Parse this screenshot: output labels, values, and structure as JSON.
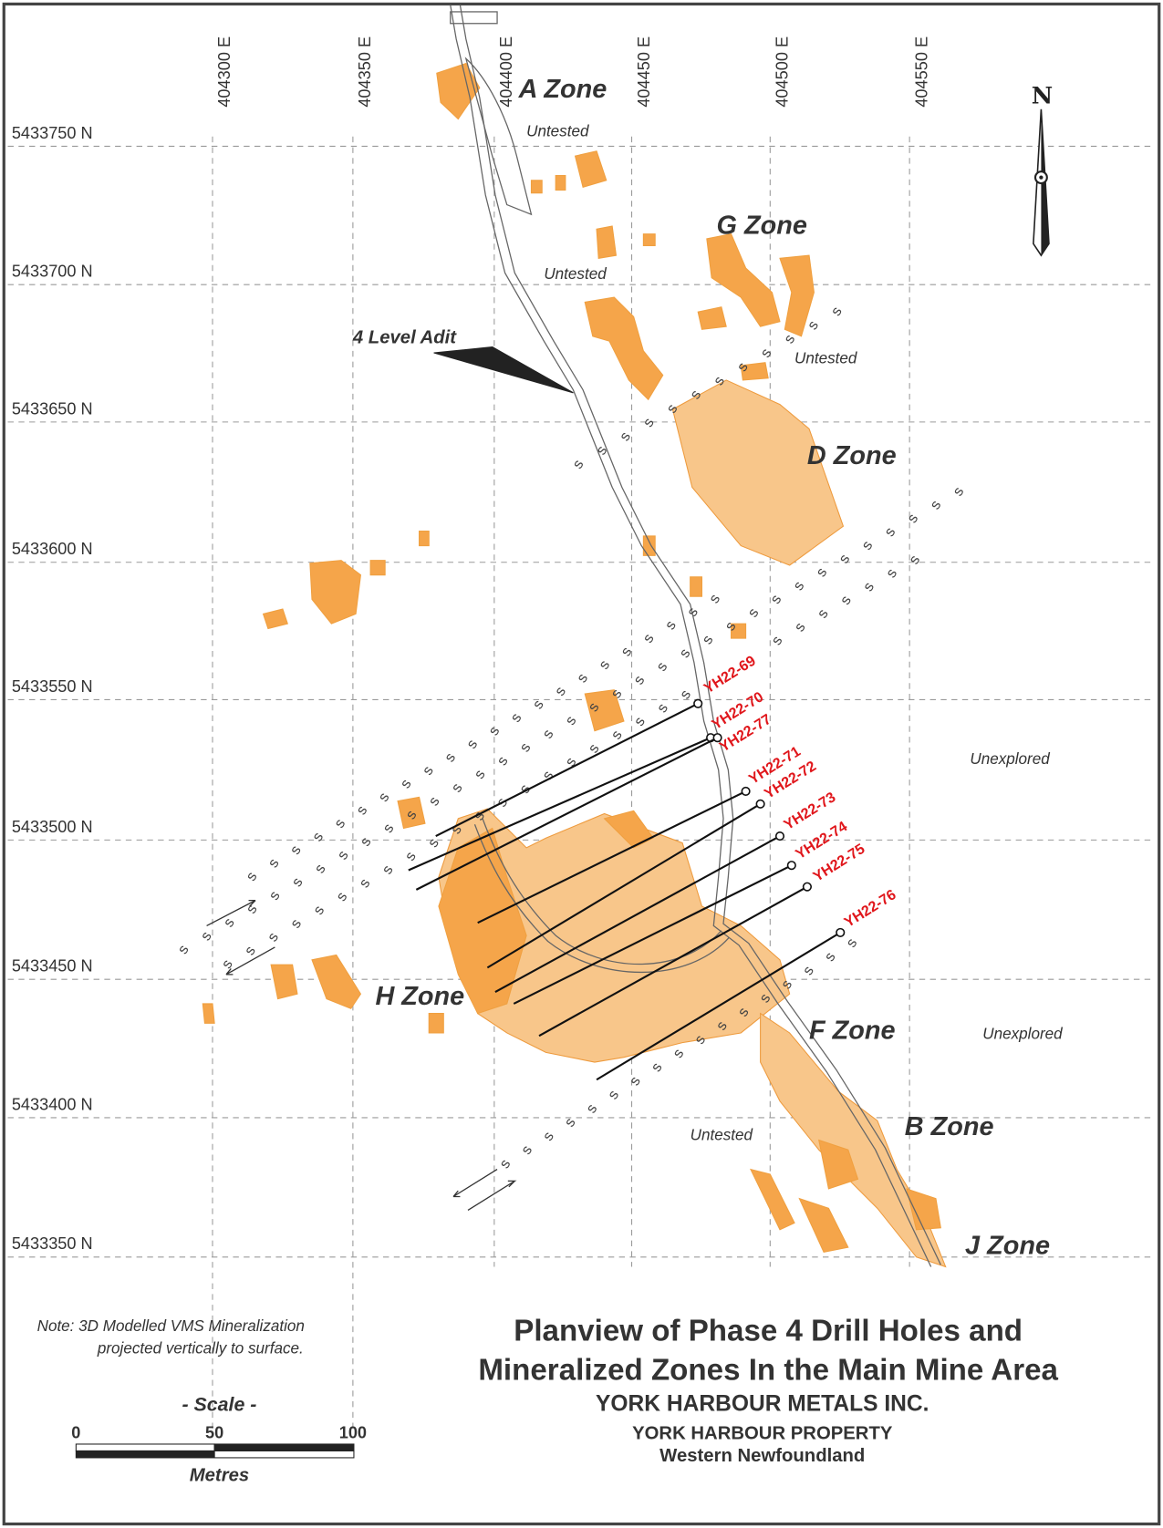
{
  "map": {
    "eastings": [
      "404300 E",
      "404350 E",
      "404400 E",
      "404450 E",
      "404500 E",
      "404550 E"
    ],
    "northings": [
      "5433750 N",
      "5433700 N",
      "5433650 N",
      "5433600 N",
      "5433550 N",
      "5433500 N",
      "5433450 N",
      "5433400 N",
      "5433350 N"
    ],
    "zones": [
      "A Zone",
      "G Zone",
      "D Zone",
      "H Zone",
      "F Zone",
      "B Zone",
      "J Zone"
    ],
    "annotations": [
      "Untested",
      "Untested",
      "Untested",
      "Untested",
      "Unexplored",
      "Unexplored"
    ],
    "adit_label": "4 Level Adit",
    "north_label": "N",
    "strat_symbol": "s",
    "drill_holes": [
      "YH22-69",
      "YH22-70",
      "YH22-77",
      "YH22-71",
      "YH22-72",
      "YH22-73",
      "YH22-74",
      "YH22-75",
      "YH22-76"
    ],
    "colors": {
      "mineralization": "#f5a54a",
      "drill_label": "#e0161b",
      "drill_trace": "#111111"
    }
  },
  "note": {
    "line1": "Note: 3D Modelled VMS Mineralization",
    "line2": "projected vertically to surface."
  },
  "scale": {
    "title": "- Scale -",
    "ticks": [
      "0",
      "50",
      "100"
    ],
    "unit": "Metres"
  },
  "title_block": {
    "line1": "Planview of Phase 4 Drill Holes and",
    "line2": "Mineralized Zones In the Main Mine Area",
    "company": "YORK HARBOUR METALS INC.",
    "property": "YORK HARBOUR PROPERTY",
    "region": "Western Newfoundland"
  }
}
